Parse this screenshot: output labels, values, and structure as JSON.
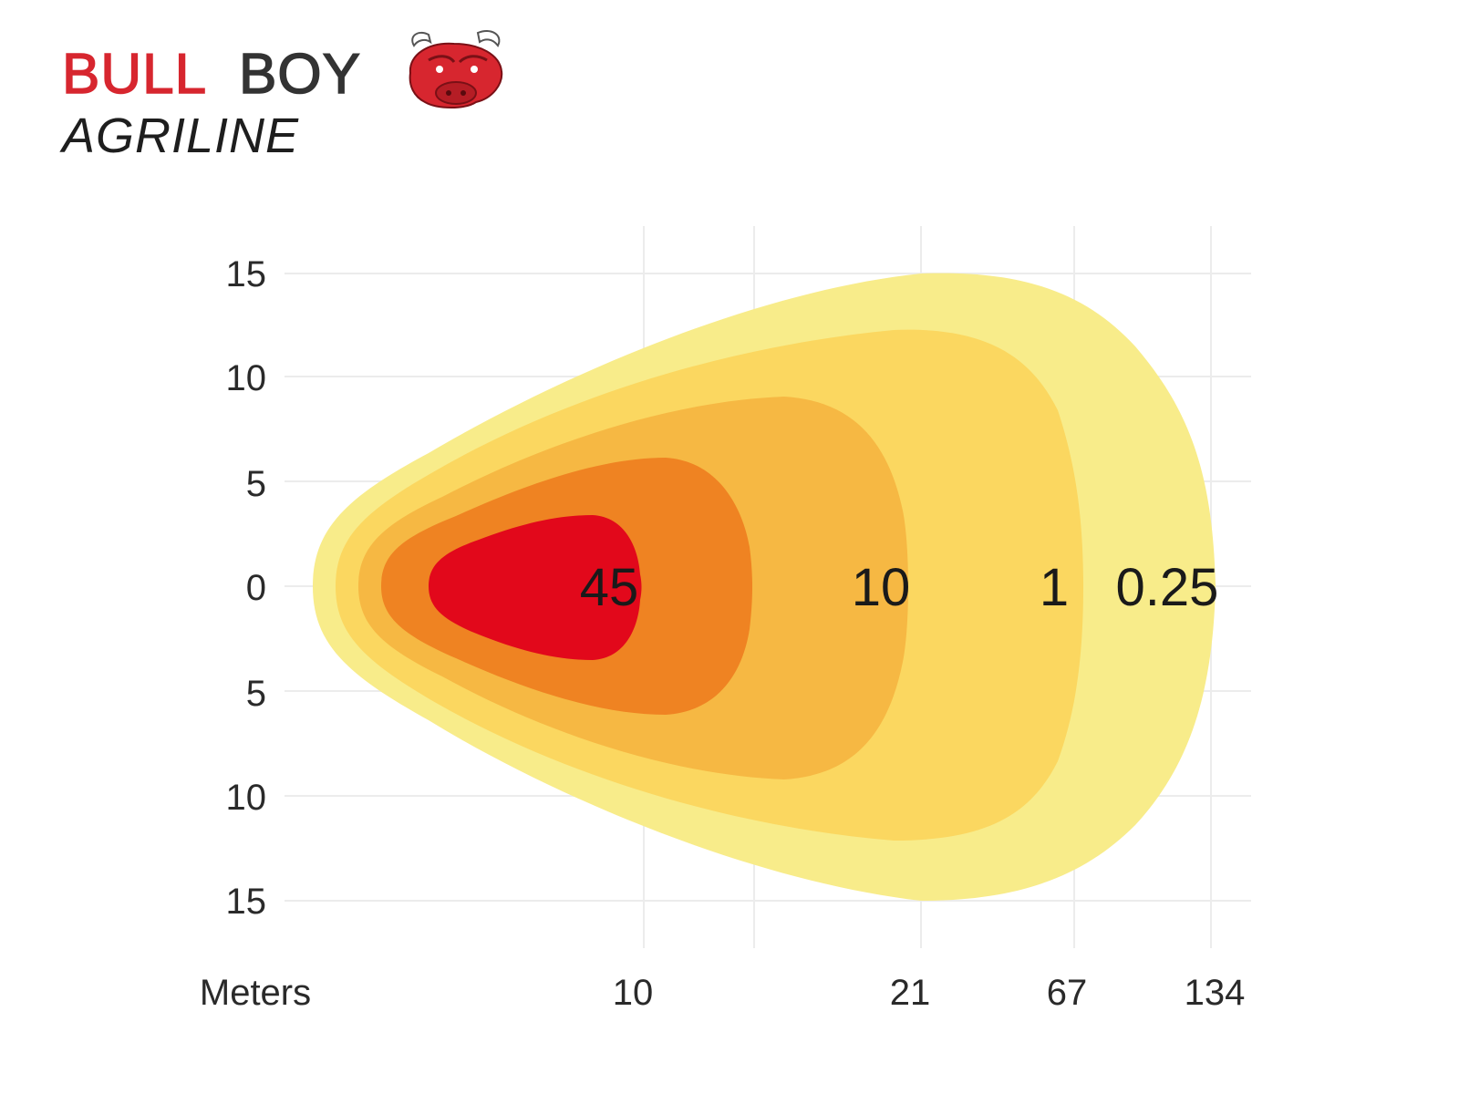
{
  "logo": {
    "brand_part1": "BULL",
    "brand_part2": "BOY",
    "sub": "AGRILINE",
    "colors": {
      "red": "#d7262f",
      "dark": "#333333"
    }
  },
  "chart_data": {
    "type": "isolux-contour",
    "x_axis_label": "Meters",
    "x_ticks": [
      "10",
      "21",
      "67",
      "134"
    ],
    "y_ticks": [
      "15",
      "10",
      "5",
      "0",
      "5",
      "10",
      "15"
    ],
    "y_range": [
      -15,
      15
    ],
    "grid": true,
    "levels": [
      {
        "label": "0.25",
        "color": "#f8ec8a"
      },
      {
        "label": "1",
        "color": "#fbd760"
      },
      {
        "label": "10",
        "color": "#f6b843"
      },
      {
        "label": "",
        "color": "#ef8322"
      },
      {
        "label": "45",
        "color": "#e2081b"
      }
    ]
  }
}
